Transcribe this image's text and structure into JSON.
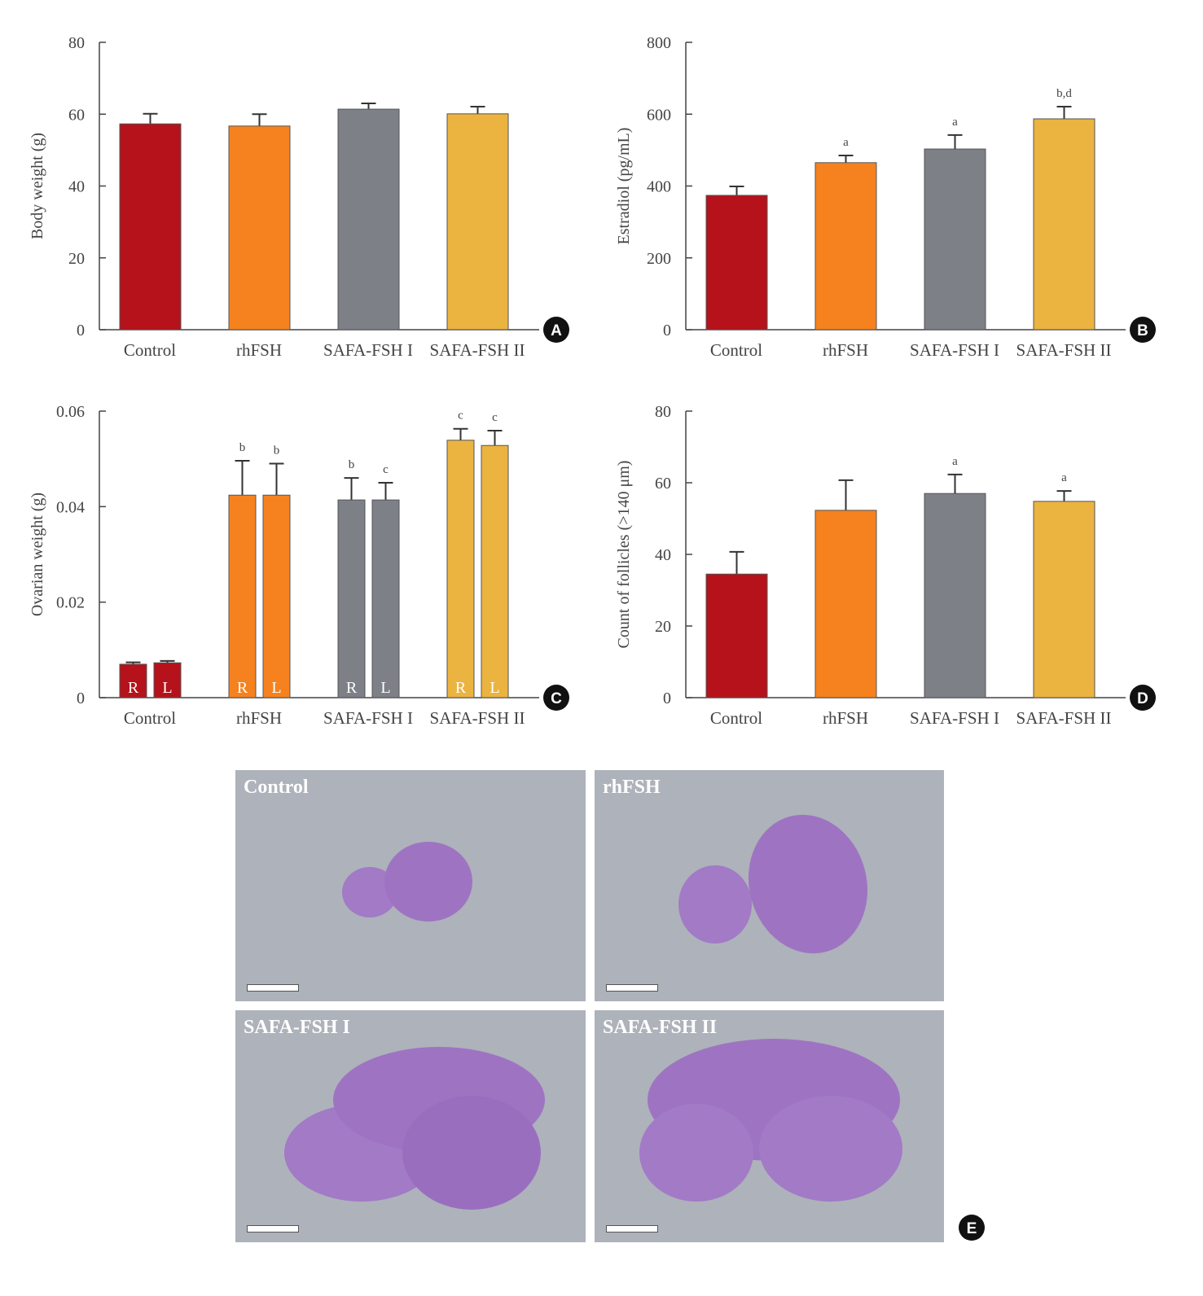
{
  "colors": {
    "Control": "#b5121b",
    "rhFSH": "#f5821f",
    "SAFA-FSH I": "#7d8087",
    "SAFA-FSH II": "#ebb340",
    "axis": "#444444"
  },
  "chart_data": [
    {
      "panel": "A",
      "type": "bar",
      "ylabel": "Body weight (g)",
      "ylim": [
        0,
        80
      ],
      "yticks": [
        "0",
        "20",
        "40",
        "60",
        "80"
      ],
      "ytick_values": [
        0,
        20,
        40,
        60,
        80
      ],
      "categories": [
        "Control",
        "rhFSH",
        "SAFA-FSH I",
        "SAFA-FSH II"
      ],
      "values": [
        57.3,
        56.7,
        61.4,
        60.1
      ],
      "errors": [
        2.8,
        3.3,
        1.6,
        2.0
      ],
      "annotations": [
        "",
        "",
        "",
        ""
      ]
    },
    {
      "panel": "B",
      "type": "bar",
      "ylabel": "Estradiol (pg/mL)",
      "ylim": [
        0,
        800
      ],
      "yticks": [
        "0",
        "200",
        "400",
        "600",
        "800"
      ],
      "ytick_values": [
        0,
        200,
        400,
        600,
        800
      ],
      "categories": [
        "Control",
        "rhFSH",
        "SAFA-FSH I",
        "SAFA-FSH II"
      ],
      "values": [
        374,
        465,
        503,
        587
      ],
      "errors": [
        25,
        20,
        39,
        34
      ],
      "annotations": [
        "",
        "a",
        "a",
        "b,d"
      ]
    },
    {
      "panel": "C",
      "type": "bar",
      "ylabel": "Ovarian weight (g)",
      "ylim": [
        0,
        0.06
      ],
      "yticks": [
        "0",
        "0.02",
        "0.04",
        "0.06"
      ],
      "ytick_values": [
        0,
        0.02,
        0.04,
        0.06
      ],
      "categories": [
        "Control",
        "rhFSH",
        "SAFA-FSH I",
        "SAFA-FSH II"
      ],
      "series": [
        {
          "name": "R",
          "values": [
            0.007,
            0.0424,
            0.0414,
            0.0539
          ],
          "errors": [
            0.0004,
            0.0072,
            0.0046,
            0.0024
          ],
          "annotations": [
            "",
            "b",
            "b",
            "c"
          ]
        },
        {
          "name": "L",
          "values": [
            0.0073,
            0.0424,
            0.0414,
            0.0528
          ],
          "errors": [
            0.0004,
            0.0066,
            0.0036,
            0.0031
          ],
          "annotations": [
            "",
            "b",
            "c",
            "c"
          ]
        }
      ]
    },
    {
      "panel": "D",
      "type": "bar",
      "ylabel": "Count of follicles (>140 μm)",
      "ylim": [
        0,
        80
      ],
      "yticks": [
        "0",
        "20",
        "40",
        "60",
        "80"
      ],
      "ytick_values": [
        0,
        20,
        40,
        60,
        80
      ],
      "categories": [
        "Control",
        "rhFSH",
        "SAFA-FSH I",
        "SAFA-FSH II"
      ],
      "values": [
        34.5,
        52.3,
        57.0,
        54.8
      ],
      "errors": [
        6.2,
        8.4,
        5.3,
        2.9
      ],
      "annotations": [
        "",
        "",
        "a",
        "a"
      ]
    }
  ],
  "histology": {
    "panel": "E",
    "images": [
      {
        "title": "Control"
      },
      {
        "title": "rhFSH"
      },
      {
        "title": "SAFA-FSH I"
      },
      {
        "title": "SAFA-FSH II"
      }
    ]
  }
}
